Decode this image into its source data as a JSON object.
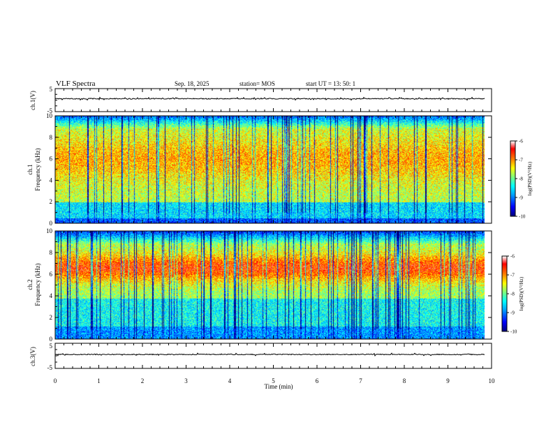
{
  "header": {
    "title": "VLF Spectra",
    "date": "Sep. 18, 2025",
    "station": "station= MOS",
    "start": "start  UT =   13: 50: 1"
  },
  "chart_data": [
    {
      "type": "line",
      "name": "ch1-waveform",
      "ylabel": "ch.1(V)",
      "ylim": [
        -5,
        5
      ],
      "yticks": [
        "5",
        "-5"
      ],
      "baseline_v": 0
    },
    {
      "type": "heatmap",
      "name": "ch1-spectrogram",
      "ylabel_1": "ch.1",
      "ylabel_2": "Frequency (kHz)",
      "ylim": [
        0,
        10
      ],
      "yticks": [
        "0",
        "2",
        "4",
        "6",
        "8",
        "10"
      ],
      "xlim": [
        0,
        9.85
      ],
      "colorbar": {
        "label": "log(PSD)(V²/Hz)",
        "ticks": [
          "-6",
          "-7",
          "-8",
          "-9",
          "-10"
        ],
        "range": [
          -10,
          -6
        ]
      }
    },
    {
      "type": "heatmap",
      "name": "ch2-spectrogram",
      "ylabel_1": "ch.2",
      "ylabel_2": "Frequency (kHz)",
      "ylim": [
        0,
        10
      ],
      "yticks": [
        "0",
        "2",
        "4",
        "6",
        "8",
        "10"
      ],
      "xlim": [
        0,
        9.85
      ],
      "colorbar": {
        "label": "log(PSD)(V²/Hz)",
        "ticks": [
          "-6",
          "-7",
          "-8",
          "-9",
          "-10"
        ],
        "range": [
          -10,
          -6
        ]
      }
    },
    {
      "type": "line",
      "name": "ch3-waveform",
      "ylabel": "ch.3(V)",
      "ylim": [
        -5,
        5
      ],
      "yticks": [
        "5",
        "-5"
      ],
      "baseline_v": 0
    }
  ],
  "xaxis": {
    "label": "Time (min)",
    "range": [
      0,
      10
    ],
    "ticks": [
      "0",
      "1",
      "2",
      "3",
      "4",
      "5",
      "6",
      "7",
      "8",
      "9",
      "10"
    ]
  },
  "colors": {
    "colormap": [
      "#00007f",
      "#0000ff",
      "#00a0ff",
      "#00ffff",
      "#7fff7f",
      "#ffff00",
      "#ff8000",
      "#ff0000",
      "#ffffff"
    ]
  }
}
